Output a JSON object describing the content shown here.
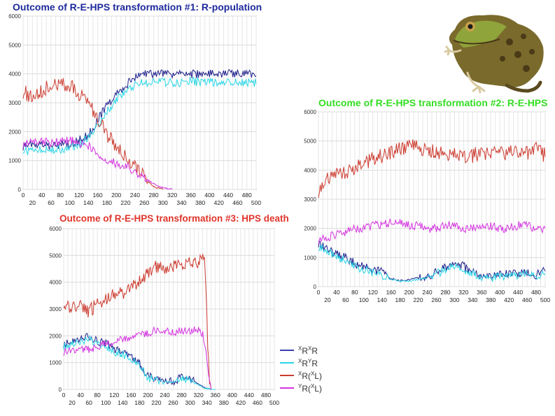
{
  "charts": [
    {
      "title": "Outcome of R-E-HPS transformation #1: R-population",
      "title_color": "#1d2a9c"
    },
    {
      "title": "Outcome of R-E-HPS transformation #2: R-E-HPS",
      "title_color": "#33dd22"
    },
    {
      "title": "Outcome of R-E-HPS transformation #3: HPS death",
      "title_color": "#e0342a"
    }
  ],
  "legend": {
    "items": [
      {
        "sup1": "X",
        "base1": "R",
        "sup2": "X",
        "base2": "R",
        "color": "#3a3fb0"
      },
      {
        "sup1": "X",
        "base1": "R",
        "sup2": "Y",
        "base2": "R",
        "color": "#2ad6e6"
      },
      {
        "sup1": "X",
        "base1": "R(",
        "sup2": "X",
        "base2": "L)",
        "color": "#cc3b2f"
      },
      {
        "sup1": "Y",
        "base1": "R(",
        "sup2": "X",
        "base2": "L)",
        "color": "#d433e0"
      }
    ]
  },
  "image": {
    "icon": "frog-icon"
  },
  "chart_data": [
    {
      "type": "line",
      "title": "Outcome of R-E-HPS transformation #1: R-population",
      "xlim": [
        0,
        500
      ],
      "ylim": [
        0,
        6000
      ],
      "x_ticks_top": [
        0,
        40,
        80,
        120,
        160,
        200,
        240,
        280,
        320,
        360,
        400,
        440,
        480
      ],
      "x_ticks_bottom": [
        20,
        60,
        100,
        140,
        180,
        220,
        260,
        300,
        340,
        380,
        420,
        460,
        500
      ],
      "y_ticks": [
        0,
        1000,
        2000,
        3000,
        4000,
        5000,
        6000
      ],
      "grid": true,
      "series": [
        {
          "color": "#1d1f8c",
          "x": [
            0,
            20,
            40,
            60,
            80,
            100,
            120,
            140,
            160,
            180,
            200,
            220,
            240,
            260,
            280,
            300,
            320,
            340,
            360,
            380,
            400,
            440,
            480,
            500
          ],
          "y": [
            1500,
            1550,
            1600,
            1500,
            1550,
            1550,
            1700,
            1900,
            2400,
            2900,
            3300,
            3600,
            3900,
            4000,
            4000,
            4000,
            4000,
            4000,
            4000,
            4000,
            4000,
            4000,
            4000,
            4000
          ]
        },
        {
          "color": "#2ad6e6",
          "x": [
            0,
            20,
            40,
            60,
            80,
            100,
            120,
            140,
            160,
            180,
            200,
            220,
            240,
            260,
            280,
            300,
            320,
            340,
            360,
            380,
            400,
            440,
            480,
            500
          ],
          "y": [
            1400,
            1300,
            1400,
            1350,
            1400,
            1450,
            1550,
            1800,
            2200,
            2700,
            3100,
            3400,
            3600,
            3700,
            3700,
            3700,
            3700,
            3700,
            3750,
            3700,
            3700,
            3700,
            3700,
            3700
          ]
        },
        {
          "color": "#cc3b2f",
          "x": [
            0,
            20,
            40,
            60,
            80,
            100,
            120,
            140,
            160,
            180,
            200,
            220,
            240,
            260,
            280,
            300
          ],
          "y": [
            3400,
            3200,
            3400,
            3700,
            3700,
            3600,
            3300,
            3000,
            2500,
            1900,
            1500,
            1100,
            800,
            400,
            100,
            0
          ]
        },
        {
          "color": "#d433e0",
          "x": [
            0,
            20,
            40,
            60,
            80,
            100,
            120,
            140,
            160,
            180,
            200,
            220,
            240,
            260,
            280,
            300,
            320
          ],
          "y": [
            1600,
            1650,
            1700,
            1600,
            1650,
            1700,
            1600,
            1500,
            1200,
            1000,
            900,
            800,
            600,
            400,
            200,
            50,
            0
          ]
        }
      ]
    },
    {
      "type": "line",
      "title": "Outcome of R-E-HPS transformation #2: R-E-HPS",
      "xlim": [
        0,
        500
      ],
      "ylim": [
        0,
        6000
      ],
      "x_ticks_top": [
        0,
        40,
        80,
        120,
        160,
        200,
        240,
        280,
        320,
        360,
        400,
        440,
        480
      ],
      "x_ticks_bottom": [
        20,
        60,
        100,
        140,
        180,
        220,
        260,
        300,
        340,
        380,
        420,
        460,
        500
      ],
      "y_ticks": [
        0,
        1000,
        2000,
        3000,
        4000,
        5000,
        6000
      ],
      "grid": true,
      "series": [
        {
          "color": "#1d1f8c",
          "x": [
            0,
            20,
            40,
            60,
            80,
            100,
            120,
            140,
            160,
            180,
            200,
            220,
            240,
            260,
            280,
            300,
            320,
            340,
            360,
            380,
            400,
            420,
            440,
            460,
            480,
            500
          ],
          "y": [
            1500,
            1300,
            1100,
            1000,
            800,
            700,
            600,
            500,
            300,
            200,
            250,
            300,
            350,
            500,
            650,
            800,
            700,
            500,
            400,
            350,
            400,
            450,
            450,
            500,
            400,
            600
          ]
        },
        {
          "color": "#2ad6e6",
          "x": [
            0,
            20,
            40,
            60,
            80,
            100,
            120,
            140,
            160,
            180,
            200,
            220,
            240,
            260,
            280,
            300,
            320,
            340,
            360,
            380,
            400,
            420,
            440,
            460,
            480,
            500
          ],
          "y": [
            1400,
            1200,
            1000,
            900,
            700,
            600,
            500,
            400,
            250,
            180,
            200,
            250,
            300,
            450,
            600,
            700,
            600,
            450,
            350,
            300,
            350,
            400,
            400,
            450,
            350,
            500
          ]
        },
        {
          "color": "#cc3b2f",
          "x": [
            0,
            20,
            40,
            60,
            80,
            100,
            120,
            140,
            160,
            180,
            200,
            220,
            240,
            260,
            280,
            300,
            320,
            340,
            360,
            380,
            400,
            420,
            440,
            460,
            480,
            500
          ],
          "y": [
            3300,
            3700,
            3800,
            3900,
            4100,
            4200,
            4400,
            4500,
            4600,
            4700,
            4800,
            4800,
            4700,
            4600,
            4600,
            4500,
            4500,
            4500,
            4600,
            4600,
            4600,
            4600,
            4600,
            4600,
            4700,
            4500
          ]
        },
        {
          "color": "#d433e0",
          "x": [
            0,
            20,
            40,
            60,
            80,
            100,
            120,
            140,
            160,
            180,
            200,
            220,
            240,
            260,
            280,
            300,
            320,
            340,
            360,
            380,
            400,
            420,
            440,
            460,
            480,
            500
          ],
          "y": [
            1600,
            1700,
            1800,
            1900,
            2000,
            2000,
            2100,
            2100,
            2200,
            2200,
            2100,
            2100,
            2000,
            2000,
            2100,
            2100,
            2000,
            2000,
            2000,
            2100,
            2000,
            2000,
            2100,
            2100,
            2000,
            2000
          ]
        }
      ]
    },
    {
      "type": "line",
      "title": "Outcome of R-E-HPS transformation #3: HPS death",
      "xlim": [
        0,
        500
      ],
      "ylim": [
        0,
        6000
      ],
      "x_ticks_top": [
        0,
        40,
        80,
        120,
        160,
        200,
        240,
        280,
        320,
        360,
        400,
        440,
        480
      ],
      "x_ticks_bottom": [
        20,
        60,
        100,
        140,
        180,
        220,
        260,
        300,
        340,
        380,
        420,
        460,
        500
      ],
      "y_ticks": [
        0,
        1000,
        2000,
        3000,
        4000,
        5000,
        6000
      ],
      "grid": true,
      "series": [
        {
          "color": "#1d1f8c",
          "x": [
            0,
            20,
            40,
            60,
            80,
            100,
            120,
            140,
            160,
            180,
            200,
            220,
            240,
            260,
            280,
            300,
            320,
            330,
            340,
            350,
            360
          ],
          "y": [
            1700,
            1800,
            1900,
            2000,
            1800,
            1700,
            1500,
            1400,
            1200,
            1000,
            500,
            400,
            350,
            300,
            450,
            400,
            200,
            100,
            50,
            0,
            0
          ]
        },
        {
          "color": "#2ad6e6",
          "x": [
            0,
            20,
            40,
            60,
            80,
            100,
            120,
            140,
            160,
            180,
            200,
            220,
            240,
            260,
            280,
            300,
            320,
            330,
            340,
            350,
            360
          ],
          "y": [
            1600,
            1700,
            1800,
            1900,
            1700,
            1600,
            1400,
            1300,
            1100,
            900,
            450,
            350,
            300,
            250,
            400,
            350,
            150,
            80,
            40,
            0,
            0
          ]
        },
        {
          "color": "#cc3b2f",
          "x": [
            0,
            20,
            40,
            60,
            80,
            100,
            120,
            140,
            160,
            180,
            200,
            220,
            240,
            260,
            280,
            300,
            320,
            330,
            335,
            340,
            345,
            350
          ],
          "y": [
            3300,
            3000,
            3100,
            2900,
            3200,
            3400,
            3500,
            3600,
            3800,
            4000,
            4400,
            4600,
            4500,
            4600,
            4700,
            4800,
            4800,
            5000,
            4800,
            2500,
            500,
            0
          ]
        },
        {
          "color": "#d433e0",
          "x": [
            0,
            20,
            40,
            60,
            80,
            100,
            120,
            140,
            160,
            180,
            200,
            220,
            240,
            260,
            280,
            300,
            320,
            330,
            340,
            345,
            350
          ],
          "y": [
            1400,
            1400,
            1500,
            1500,
            1600,
            1700,
            1800,
            1900,
            2000,
            2100,
            2100,
            2200,
            2200,
            2100,
            2200,
            2200,
            2200,
            2100,
            1200,
            500,
            0
          ]
        }
      ]
    }
  ]
}
